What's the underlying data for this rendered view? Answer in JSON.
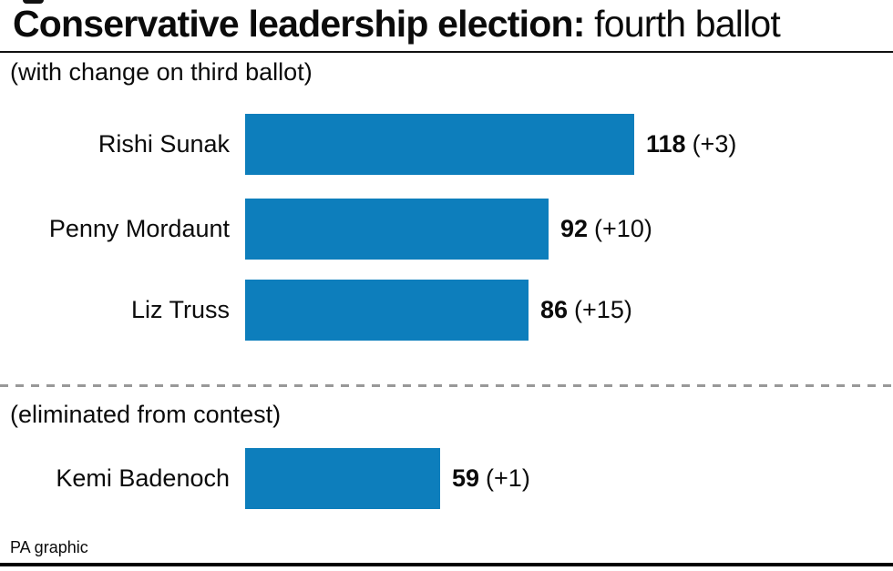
{
  "header": {
    "title_bold": "Conservative leadership election:",
    "title_regular": " fourth ballot",
    "subtitle": "(with change on third ballot)"
  },
  "chart_data": {
    "type": "bar",
    "orientation": "horizontal",
    "title": "Conservative leadership election: fourth ballot",
    "subtitle": "(with change on third ballot)",
    "categories": [
      "Rishi Sunak",
      "Penny Mordaunt",
      "Liz Truss",
      "Kemi Badenoch"
    ],
    "values": [
      118,
      92,
      86,
      59
    ],
    "changes": [
      "(+3)",
      "(+10)",
      "(+15)",
      "(+1)"
    ],
    "eliminated_note": "(eliminated from contest)",
    "eliminated_categories": [
      "Kemi Badenoch"
    ],
    "xlim": [
      0,
      118
    ],
    "grid": false,
    "legend": false,
    "bar_color": "#0d7ebc"
  },
  "footer": {
    "credit": "PA graphic"
  },
  "colors": {
    "bar": "#0d7ebc",
    "text": "#0b0b0b",
    "divider_dash": "#999999",
    "rule": "#111111",
    "bottom_bar": "#000000"
  }
}
